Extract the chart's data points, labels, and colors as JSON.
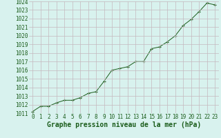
{
  "x": [
    0,
    1,
    2,
    3,
    4,
    5,
    6,
    7,
    8,
    9,
    10,
    11,
    12,
    13,
    14,
    15,
    16,
    17,
    18,
    19,
    20,
    21,
    22,
    23
  ],
  "y": [
    1011.2,
    1011.8,
    1011.8,
    1012.2,
    1012.5,
    1012.5,
    1012.8,
    1013.3,
    1013.5,
    1014.7,
    1016.0,
    1016.2,
    1016.4,
    1017.0,
    1017.0,
    1018.5,
    1018.7,
    1019.3,
    1020.0,
    1021.2,
    1021.9,
    1022.8,
    1023.8,
    1023.6
  ],
  "ylim": [
    1011,
    1024
  ],
  "xlim": [
    -0.5,
    23.5
  ],
  "yticks": [
    1011,
    1012,
    1013,
    1014,
    1015,
    1016,
    1017,
    1018,
    1019,
    1020,
    1021,
    1022,
    1023,
    1024
  ],
  "xticks": [
    0,
    1,
    2,
    3,
    4,
    5,
    6,
    7,
    8,
    9,
    10,
    11,
    12,
    13,
    14,
    15,
    16,
    17,
    18,
    19,
    20,
    21,
    22,
    23
  ],
  "line_color": "#1a5c1a",
  "marker": "+",
  "marker_color": "#1a5c1a",
  "bg_color": "#d8f2ee",
  "grid_color": "#c4b8be",
  "xlabel": "Graphe pression niveau de la mer (hPa)",
  "xlabel_color": "#1a5c1a",
  "tick_color": "#1a5c1a",
  "tick_fontsize": 5.5,
  "xlabel_fontsize": 7.0,
  "figure_bg": "#d8f2ee",
  "bottom_bar_color": "#2d6e2d"
}
